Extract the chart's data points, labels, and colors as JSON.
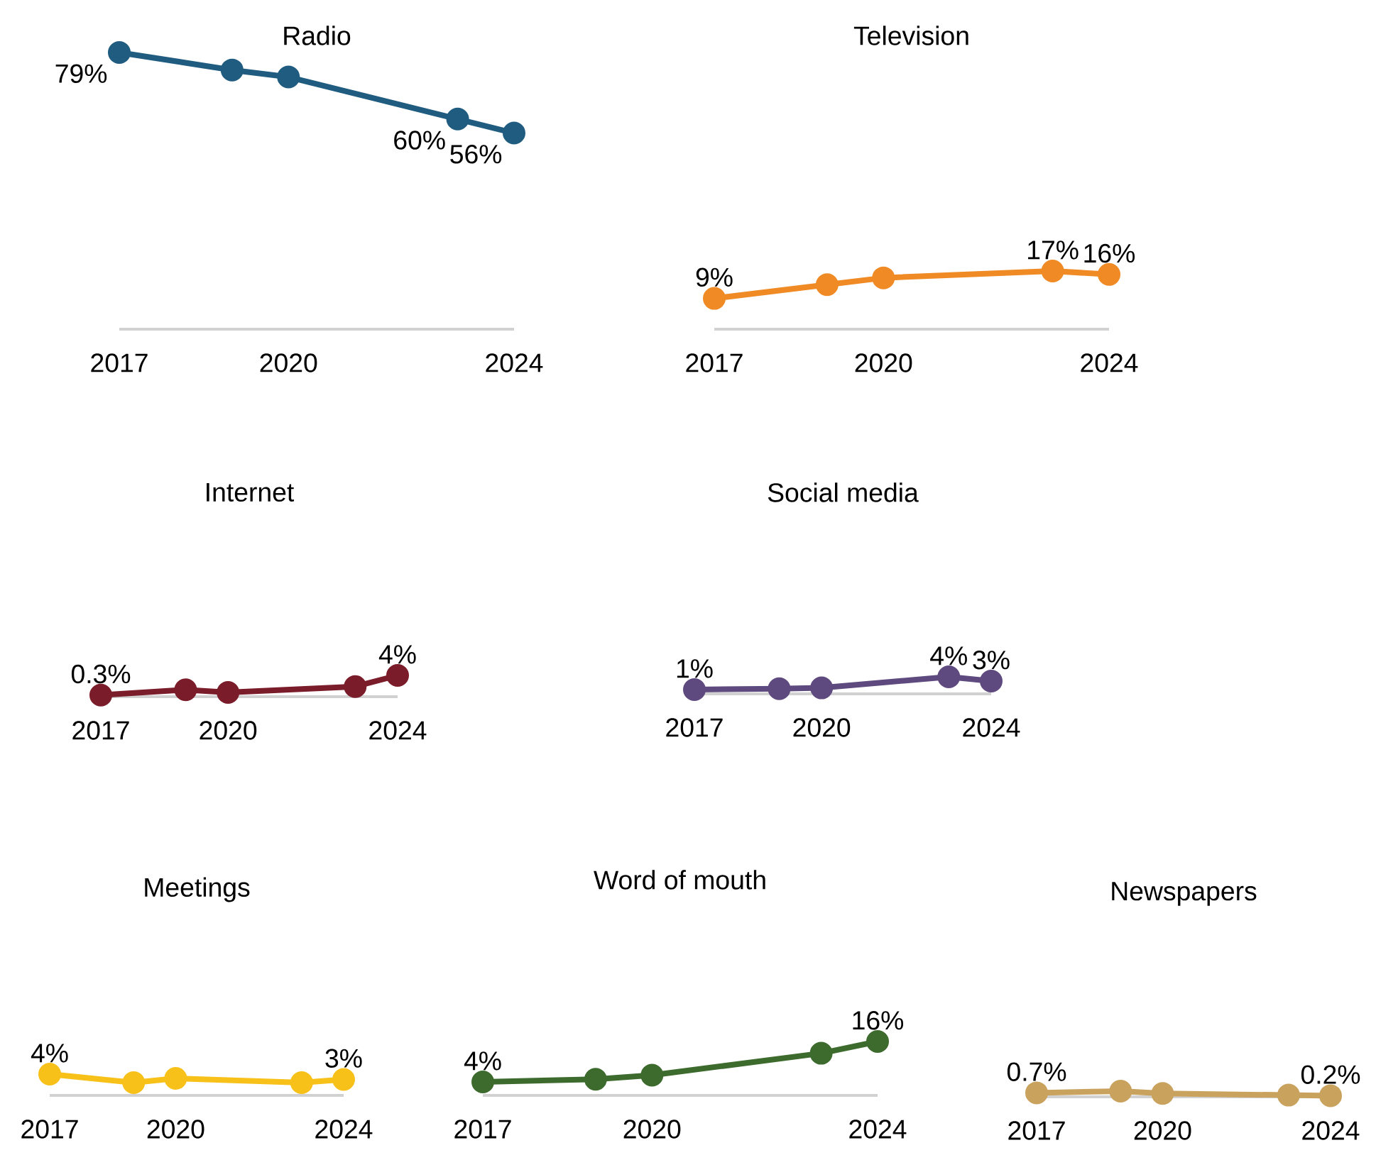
{
  "chart_data": [
    {
      "type": "line",
      "title": "Radio",
      "x": [
        2017,
        2019,
        2020,
        2023,
        2024
      ],
      "xlim": [
        2017,
        2024
      ],
      "xticks": [
        2017,
        2020,
        2024
      ],
      "marker": "circle",
      "series": [
        {
          "color": "#1f5c80",
          "values": [
            79,
            74,
            72,
            60,
            56
          ],
          "value_labels": [
            "79%",
            null,
            null,
            "60%",
            "56%"
          ]
        }
      ]
    },
    {
      "type": "line",
      "title": "Television",
      "x": [
        2017,
        2019,
        2020,
        2023,
        2024
      ],
      "xlim": [
        2017,
        2024
      ],
      "xticks": [
        2017,
        2020,
        2024
      ],
      "marker": "circle",
      "series": [
        {
          "color": "#f08a24",
          "values": [
            9,
            13,
            15,
            17,
            16
          ],
          "value_labels": [
            "9%",
            null,
            null,
            "17%",
            "16%"
          ]
        }
      ]
    },
    {
      "type": "line",
      "title": "Internet",
      "x": [
        2017,
        2019,
        2020,
        2023,
        2024
      ],
      "xlim": [
        2017,
        2024
      ],
      "xticks": [
        2017,
        2020,
        2024
      ],
      "marker": "circle",
      "series": [
        {
          "color": "#7b1c2a",
          "values": [
            0.3,
            1.3,
            0.8,
            1.9,
            4
          ],
          "value_labels": [
            "0.3%",
            null,
            null,
            null,
            "4%"
          ]
        }
      ]
    },
    {
      "type": "line",
      "title": "Social media",
      "x": [
        2017,
        2019,
        2020,
        2023,
        2024
      ],
      "xlim": [
        2017,
        2024
      ],
      "xticks": [
        2017,
        2020,
        2024
      ],
      "marker": "circle",
      "series": [
        {
          "color": "#5e4a7e",
          "values": [
            1,
            1.2,
            1.4,
            4,
            3
          ],
          "value_labels": [
            "1%",
            null,
            null,
            "4%",
            "3%"
          ]
        }
      ]
    },
    {
      "type": "line",
      "title": "Meetings",
      "x": [
        2017,
        2019,
        2020,
        2023,
        2024
      ],
      "xlim": [
        2017,
        2024
      ],
      "xticks": [
        2017,
        2020,
        2024
      ],
      "marker": "circle",
      "series": [
        {
          "color": "#f7c11a",
          "values": [
            4,
            2.4,
            3.2,
            2.4,
            3
          ],
          "value_labels": [
            "4%",
            null,
            null,
            null,
            "3%"
          ]
        }
      ]
    },
    {
      "type": "line",
      "title": "Word of mouth",
      "x": [
        2017,
        2019,
        2020,
        2023,
        2024
      ],
      "xlim": [
        2017,
        2024
      ],
      "xticks": [
        2017,
        2020,
        2024
      ],
      "marker": "circle",
      "series": [
        {
          "color": "#3d6b2e",
          "values": [
            4,
            4.8,
            6,
            12.5,
            16
          ],
          "value_labels": [
            "4%",
            null,
            null,
            null,
            "16%"
          ]
        }
      ]
    },
    {
      "type": "line",
      "title": "Newspapers",
      "x": [
        2017,
        2019,
        2020,
        2023,
        2024
      ],
      "xlim": [
        2017,
        2024
      ],
      "xticks": [
        2017,
        2020,
        2024
      ],
      "marker": "circle",
      "series": [
        {
          "color": "#c9a25e",
          "values": [
            0.7,
            1.0,
            0.6,
            0.3,
            0.2
          ],
          "value_labels": [
            "0.7%",
            null,
            null,
            null,
            "0.2%"
          ]
        }
      ]
    }
  ]
}
